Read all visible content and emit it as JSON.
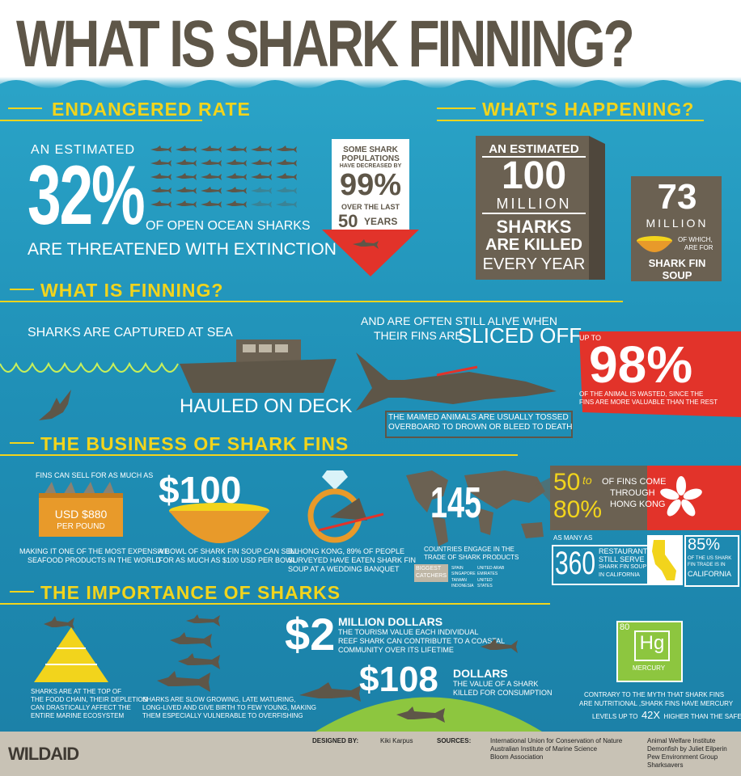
{
  "title": "WHAT IS SHARK FINNING?",
  "colors": {
    "accent": "#f2d41c",
    "ocean": "#1f8fb6",
    "brown": "#6b6152",
    "red": "#e2332a"
  },
  "sections": {
    "endangered": "ENDANGERED RATE",
    "happening": "WHAT'S HAPPENING?",
    "finning": "WHAT IS FINNING?",
    "business": "THE BUSINESS OF SHARK FINS",
    "importance": "THE IMPORTANCE OF SHARKS"
  },
  "endangered": {
    "estimated": "AN ESTIMATED",
    "percent": "32%",
    "of_open": "OF OPEN OCEAN SHARKS",
    "threatened": "ARE THREATENED WITH EXTINCTION",
    "pop_line1": "SOME SHARK",
    "pop_line2": "POPULATIONS",
    "pop_line3": "HAVE DECREASED BY",
    "pop_percent": "99%",
    "pop_over": "OVER THE LAST",
    "pop_years_num": "50",
    "pop_years": "YEARS"
  },
  "happening": {
    "estimated": "AN ESTIMATED",
    "num": "100",
    "million": "MILLION",
    "sharks": "SHARKS",
    "are_killed": "ARE KILLED",
    "every_year": "EVERY YEAR",
    "num2": "73",
    "million2": "MILLION",
    "of_which": "OF WHICH,",
    "are_for": "ARE FOR",
    "soup": "SHARK FIN SOUP"
  },
  "finning": {
    "captured": "SHARKS ARE CAPTURED AT SEA",
    "hauled": "HAULED ON DECK",
    "alive1": "AND ARE OFTEN STILL ALIVE WHEN",
    "alive2": "THEIR FINS ARE",
    "sliced": "SLICED OFF",
    "tossed1": "THE MAIMED ANIMALS ARE USUALLY TOSSED",
    "tossed2": "OVERBOARD TO DROWN OR BLEED TO DEATH",
    "up_to": "UP TO",
    "wasted_pct": "98%",
    "wasted1": "OF THE ANIMAL IS WASTED, SINCE THE",
    "wasted2": "FINS ARE MORE VALUABLE THAN THE REST"
  },
  "business": {
    "sell_for": "FINS CAN SELL FOR AS MUCH AS",
    "price": "USD $880",
    "per_pound": "PER POUND",
    "expensive1": "MAKING IT ONE OF THE MOST EXPENSIVE",
    "expensive2": "SEAFOOD PRODUCTS IN THE WORLD",
    "bowl_price": "$100",
    "bowl1": "A BOWL OF SHARK FIN SOUP CAN SELL",
    "bowl2": "FOR AS MUCH AS $100 USD PER BOWL",
    "hk1": "IN HONG KONG, 89% OF PEOPLE",
    "hk2": "SURVEYED HAVE EATEN SHARK FIN",
    "hk3": "SOUP AT A WEDDING BANQUET",
    "countries_num": "145",
    "countries1": "COUNTRIES ENGAGE IN THE",
    "countries2": "TRADE OF SHARK PRODUCTS",
    "biggest1": "BIGGEST",
    "biggest2": "CATCHERS",
    "catchers_col1": [
      "SPAIN",
      "SINGAPORE",
      "TAIWAN",
      "INDONESIA"
    ],
    "catchers_col2": [
      "UNITED ARAB",
      "EMIRATES",
      "UNITED",
      "STATES"
    ],
    "hk_from": "50",
    "hk_to_word": "to",
    "hk_to": "80%",
    "hk_fins1": "OF FINS COME",
    "hk_fins2": "THROUGH",
    "hk_fins3": "HONG KONG",
    "as_many": "AS MANY AS",
    "restaurants_num": "360",
    "restaurants1": "RESTAURANTS",
    "restaurants2": "STILL SERVE",
    "restaurants3": "SHARK FIN SOUP",
    "restaurants4": "IN CALIFORNIA",
    "ca_pct": "85%",
    "ca1": "OF THE US SHARK",
    "ca2": "FIN TRADE IS IN",
    "ca3": "CALIFORNIA"
  },
  "importance": {
    "top1": "SHARKS ARE AT THE TOP OF",
    "top2": "THE FOOD CHAIN, THEIR DEPLETION",
    "top3": "CAN DRASTICALLY AFFECT THE",
    "top4": "ENTIRE MARINE ECOSYSTEM",
    "slow1": "SHARKS ARE SLOW GROWING, LATE MATURING,",
    "slow2": "LONG-LIVED AND GIVE BIRTH TO FEW YOUNG, MAKING",
    "slow3": "THEM ESPECIALLY VULNERABLE TO OVERFISHING",
    "million_num": "$2",
    "million_label": "MILLION DOLLARS",
    "tourism1": "THE TOURISM VALUE EACH INDIVIDUAL",
    "tourism2": "REEF SHARK CAN CONTRIBUTE TO A COASTAL",
    "tourism3": "COMMUNITY OVER ITS LIFETIME",
    "value_num": "$108",
    "value_label": "DOLLARS",
    "value1": "THE VALUE OF A SHARK",
    "value2": "KILLED FOR CONSUMPTION",
    "hg_num": "80",
    "hg_sym": "Hg",
    "hg_name": "MERCURY",
    "mercury1": "CONTRARY TO THE MYTH THAT SHARK FINS",
    "mercury2": "ARE NUTRITIONAL ,SHARK FINS HAVE MERCURY",
    "mercury3a": "LEVELS UP TO",
    "mercury3b": "42X",
    "mercury3c": "HIGHER THAN THE SAFE LIMIT"
  },
  "footer": {
    "logo": "WILDAID",
    "designed_by_label": "DESIGNED BY:",
    "designer": "Kiki Karpus",
    "sources_label": "SOURCES:",
    "sources_col1": [
      "International Union for Conservation of Nature",
      "Australian Institute of Marine Science",
      "Bloom Association"
    ],
    "sources_col2": [
      "Animal Welfare Institute",
      "Demonfish by Juliet Eilperin",
      "Pew Environment Group",
      "Sharksavers"
    ]
  }
}
